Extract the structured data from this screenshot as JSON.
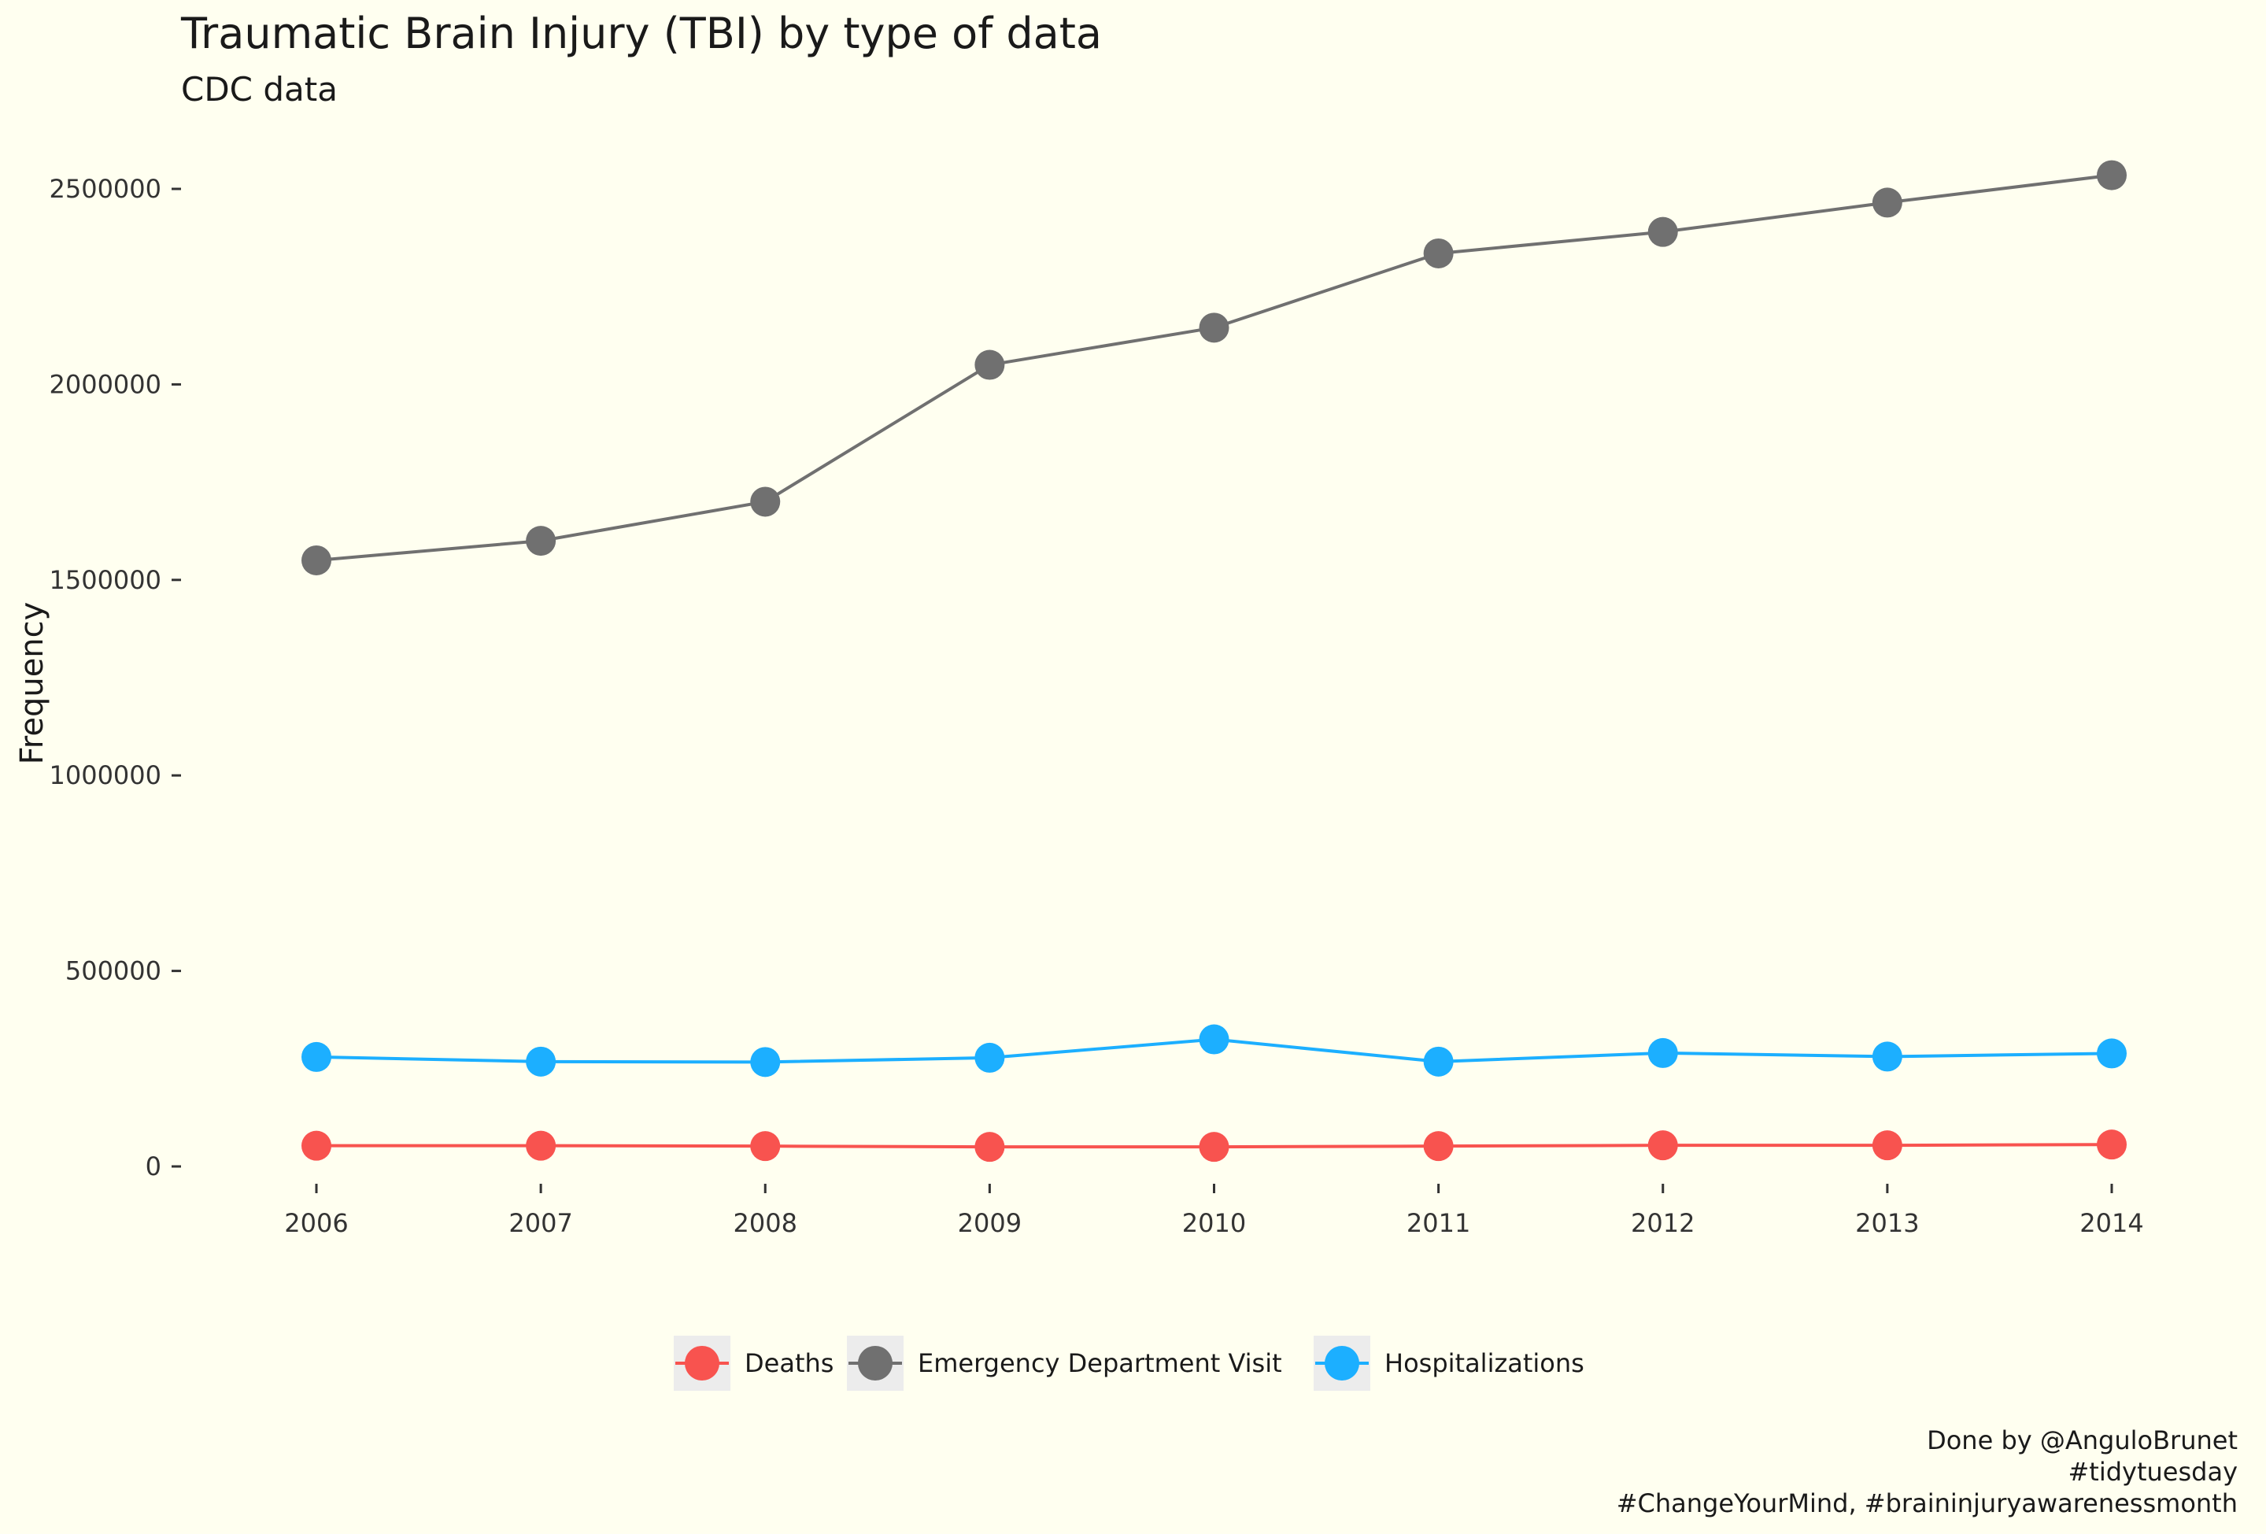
{
  "chart_data": {
    "type": "line",
    "title": "Traumatic Brain Injury (TBI) by type of data",
    "subtitle": "CDC data",
    "xlabel": "",
    "ylabel": "Frequency",
    "x": [
      2006,
      2007,
      2008,
      2009,
      2010,
      2011,
      2012,
      2013,
      2014
    ],
    "xlim": [
      2006,
      2014
    ],
    "ylim": [
      0,
      2500000
    ],
    "y_ticks": [
      0,
      500000,
      1000000,
      1500000,
      2000000,
      2500000
    ],
    "grid": false,
    "legend_position": "bottom",
    "series": [
      {
        "name": "Deaths",
        "color": "#f8534f",
        "values": [
          53000,
          53000,
          52000,
          50000,
          50000,
          52000,
          54000,
          54000,
          56000
        ]
      },
      {
        "name": "Emergency Department Visit",
        "color": "#707070",
        "values": [
          1550000,
          1600000,
          1700000,
          2050000,
          2145000,
          2335000,
          2390000,
          2465000,
          2535000
        ]
      },
      {
        "name": "Hospitalizations",
        "color": "#1cafff",
        "values": [
          280000,
          268000,
          267000,
          278000,
          325000,
          268000,
          290000,
          281000,
          289000
        ]
      }
    ],
    "caption": [
      "Done by @AnguloBrunet",
      "#tidytuesday",
      "#ChangeYourMind, #braininjuryawarenessmonth"
    ]
  }
}
